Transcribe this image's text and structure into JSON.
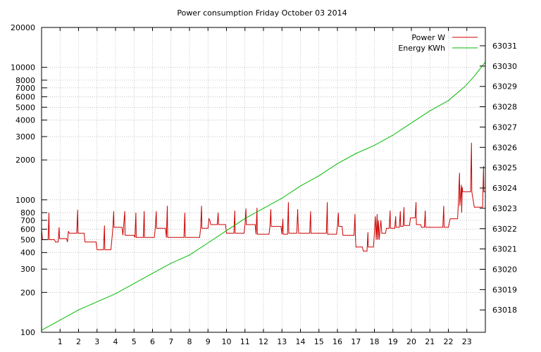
{
  "chart_data": {
    "type": "line",
    "title": "Power consumption Friday October 03 2014",
    "xlabel": "",
    "ylabel": "",
    "y2label": "",
    "x_ticks": [
      1,
      2,
      3,
      4,
      5,
      6,
      7,
      8,
      9,
      10,
      11,
      12,
      13,
      14,
      15,
      16,
      17,
      18,
      19,
      20,
      21,
      22,
      23
    ],
    "xlim": [
      0,
      24
    ],
    "y_scale": "log",
    "ylim": [
      100,
      20000
    ],
    "y_ticks": [
      100,
      200,
      300,
      400,
      500,
      600,
      700,
      800,
      1000,
      2000,
      3000,
      4000,
      5000,
      6000,
      7000,
      8000,
      10000,
      20000
    ],
    "y2lim": [
      63016.9,
      63031.9
    ],
    "y2_ticks": [
      63018,
      63019,
      63020,
      63021,
      63022,
      63023,
      63024,
      63025,
      63026,
      63027,
      63028,
      63029,
      63030,
      63031
    ],
    "grid": true,
    "legend_position": "top-right",
    "series": [
      {
        "name": "Power W",
        "axis": "left",
        "color": "#cc0000",
        "points": [
          [
            0,
            600
          ],
          [
            0.05,
            500
          ],
          [
            0.35,
            500
          ],
          [
            0.4,
            800
          ],
          [
            0.42,
            500
          ],
          [
            0.7,
            500
          ],
          [
            0.75,
            480
          ],
          [
            0.9,
            480
          ],
          [
            0.95,
            620
          ],
          [
            0.97,
            510
          ],
          [
            1.35,
            510
          ],
          [
            1.4,
            480
          ],
          [
            1.45,
            580
          ],
          [
            1.5,
            560
          ],
          [
            1.9,
            560
          ],
          [
            1.95,
            840
          ],
          [
            1.97,
            560
          ],
          [
            2.3,
            560
          ],
          [
            2.35,
            480
          ],
          [
            2.95,
            480
          ],
          [
            3.0,
            420
          ],
          [
            3.35,
            420
          ],
          [
            3.4,
            640
          ],
          [
            3.42,
            420
          ],
          [
            3.75,
            420
          ],
          [
            3.8,
            500
          ],
          [
            3.85,
            600
          ],
          [
            3.9,
            820
          ],
          [
            3.92,
            620
          ],
          [
            4.35,
            620
          ],
          [
            4.4,
            540
          ],
          [
            4.5,
            820
          ],
          [
            4.52,
            540
          ],
          [
            5.0,
            540
          ],
          [
            5.05,
            520
          ],
          [
            5.1,
            800
          ],
          [
            5.12,
            520
          ],
          [
            5.5,
            520
          ],
          [
            5.55,
            820
          ],
          [
            5.57,
            520
          ],
          [
            6.1,
            520
          ],
          [
            6.15,
            610
          ],
          [
            6.2,
            820
          ],
          [
            6.22,
            610
          ],
          [
            6.7,
            610
          ],
          [
            6.75,
            520
          ],
          [
            6.8,
            900
          ],
          [
            6.82,
            520
          ],
          [
            7.7,
            520
          ],
          [
            7.75,
            800
          ],
          [
            7.77,
            520
          ],
          [
            8.55,
            520
          ],
          [
            8.6,
            610
          ],
          [
            8.65,
            900
          ],
          [
            8.67,
            610
          ],
          [
            9.0,
            610
          ],
          [
            9.05,
            720
          ],
          [
            9.1,
            700
          ],
          [
            9.15,
            650
          ],
          [
            9.5,
            650
          ],
          [
            9.55,
            800
          ],
          [
            9.57,
            650
          ],
          [
            9.95,
            650
          ],
          [
            10.0,
            560
          ],
          [
            10.4,
            560
          ],
          [
            10.45,
            830
          ],
          [
            10.47,
            560
          ],
          [
            10.95,
            560
          ],
          [
            11.0,
            650
          ],
          [
            11.05,
            860
          ],
          [
            11.07,
            650
          ],
          [
            11.55,
            650
          ],
          [
            11.6,
            550
          ],
          [
            11.65,
            870
          ],
          [
            11.67,
            550
          ],
          [
            12.3,
            550
          ],
          [
            12.35,
            630
          ],
          [
            12.4,
            850
          ],
          [
            12.42,
            630
          ],
          [
            12.95,
            630
          ],
          [
            13.0,
            550
          ],
          [
            13.05,
            720
          ],
          [
            13.07,
            550
          ],
          [
            13.3,
            550
          ],
          [
            13.35,
            960
          ],
          [
            13.37,
            560
          ],
          [
            13.8,
            560
          ],
          [
            13.85,
            850
          ],
          [
            13.87,
            680
          ],
          [
            13.9,
            560
          ],
          [
            14.5,
            560
          ],
          [
            14.55,
            820
          ],
          [
            14.57,
            560
          ],
          [
            15.4,
            560
          ],
          [
            15.45,
            960
          ],
          [
            15.47,
            550
          ],
          [
            15.95,
            550
          ],
          [
            16.0,
            630
          ],
          [
            16.05,
            800
          ],
          [
            16.07,
            630
          ],
          [
            16.25,
            630
          ],
          [
            16.3,
            540
          ],
          [
            16.9,
            540
          ],
          [
            16.95,
            780
          ],
          [
            16.97,
            540
          ],
          [
            17.0,
            440
          ],
          [
            17.35,
            440
          ],
          [
            17.4,
            410
          ],
          [
            17.6,
            410
          ],
          [
            17.65,
            570
          ],
          [
            17.67,
            440
          ],
          [
            17.95,
            440
          ],
          [
            18.0,
            560
          ],
          [
            18.05,
            750
          ],
          [
            18.1,
            500
          ],
          [
            18.15,
            780
          ],
          [
            18.18,
            500
          ],
          [
            18.22,
            700
          ],
          [
            18.26,
            500
          ],
          [
            18.35,
            700
          ],
          [
            18.4,
            560
          ],
          [
            18.6,
            560
          ],
          [
            18.65,
            610
          ],
          [
            18.8,
            610
          ],
          [
            18.85,
            830
          ],
          [
            18.87,
            610
          ],
          [
            19.1,
            610
          ],
          [
            19.15,
            750
          ],
          [
            19.17,
            620
          ],
          [
            19.35,
            620
          ],
          [
            19.4,
            820
          ],
          [
            19.42,
            630
          ],
          [
            19.55,
            630
          ],
          [
            19.6,
            880
          ],
          [
            19.62,
            640
          ],
          [
            19.9,
            640
          ],
          [
            19.95,
            730
          ],
          [
            20.2,
            730
          ],
          [
            20.25,
            960
          ],
          [
            20.27,
            650
          ],
          [
            20.5,
            650
          ],
          [
            20.55,
            620
          ],
          [
            20.7,
            620
          ],
          [
            20.75,
            830
          ],
          [
            20.77,
            620
          ],
          [
            21.7,
            620
          ],
          [
            21.75,
            900
          ],
          [
            21.77,
            620
          ],
          [
            22.0,
            620
          ],
          [
            22.1,
            720
          ],
          [
            22.5,
            720
          ],
          [
            22.55,
            1000
          ],
          [
            22.6,
            1600
          ],
          [
            22.62,
            900
          ],
          [
            22.7,
            1300
          ],
          [
            22.72,
            800
          ],
          [
            22.75,
            1250
          ],
          [
            22.77,
            1150
          ],
          [
            23.2,
            1150
          ],
          [
            23.25,
            2700
          ],
          [
            23.27,
            1150
          ],
          [
            23.4,
            880
          ],
          [
            23.85,
            880
          ],
          [
            23.9,
            1800
          ],
          [
            23.92,
            1150
          ],
          [
            24.0,
            1150
          ]
        ]
      },
      {
        "name": "Energy KWh",
        "axis": "right",
        "color": "#00bb00",
        "points": [
          [
            0,
            63017.0
          ],
          [
            1,
            63017.5
          ],
          [
            2,
            63018.0
          ],
          [
            3,
            63018.4
          ],
          [
            4,
            63018.8
          ],
          [
            5,
            63019.3
          ],
          [
            6,
            63019.8
          ],
          [
            7,
            63020.3
          ],
          [
            8,
            63020.7
          ],
          [
            9,
            63021.3
          ],
          [
            10,
            63021.9
          ],
          [
            11,
            63022.5
          ],
          [
            12,
            63023.0
          ],
          [
            13,
            63023.5
          ],
          [
            14,
            63024.1
          ],
          [
            15,
            63024.6
          ],
          [
            16,
            63025.2
          ],
          [
            17,
            63025.7
          ],
          [
            18,
            63026.1
          ],
          [
            19,
            63026.6
          ],
          [
            20,
            63027.2
          ],
          [
            21,
            63027.8
          ],
          [
            22,
            63028.3
          ],
          [
            22.9,
            63029.0
          ],
          [
            23.4,
            63029.5
          ],
          [
            24,
            63030.2
          ]
        ]
      }
    ]
  }
}
